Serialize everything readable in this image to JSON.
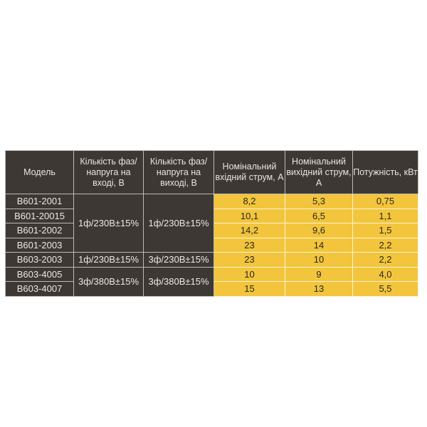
{
  "headers": [
    "Модель",
    "Кількість фаз/напруга на вході, В",
    "Кількість фаз/напруга на виході, В",
    "Номінальний вхідний струм, А",
    "Номінальний вихідний струм, А",
    "Потужність, кВт"
  ],
  "rows": [
    {
      "model": "B601-2001",
      "in_current": "8,2",
      "out_current": "5,3",
      "power": "0,75"
    },
    {
      "model": "B601-20015",
      "in_current": "10,1",
      "out_current": "6,5",
      "power": "1,1"
    },
    {
      "model": "B601-2002",
      "in_current": "14,2",
      "out_current": "9,6",
      "power": "1,5"
    },
    {
      "model": "B601-2003",
      "in_current": "23",
      "out_current": "14",
      "power": "2,2"
    },
    {
      "model": "B603-2003",
      "in_current": "23",
      "out_current": "10",
      "power": "2,2"
    },
    {
      "model": "B603-4005",
      "in_current": "10",
      "out_current": "9",
      "power": "4,0"
    },
    {
      "model": "B603-4007",
      "in_current": "15",
      "out_current": "13",
      "power": "5,5"
    }
  ],
  "groups": {
    "g1_in": "1ф/230В±15%",
    "g1_out": "1ф/230В±15%",
    "g2_in": "1ф/230В±15%",
    "g2_out": "3ф/230В±15%",
    "g3_in": "3ф/380В±15%",
    "g3_out": "3ф/380В±15%"
  },
  "colors": {
    "header_bg": "#3d3833",
    "highlight": "#f2c53d"
  }
}
